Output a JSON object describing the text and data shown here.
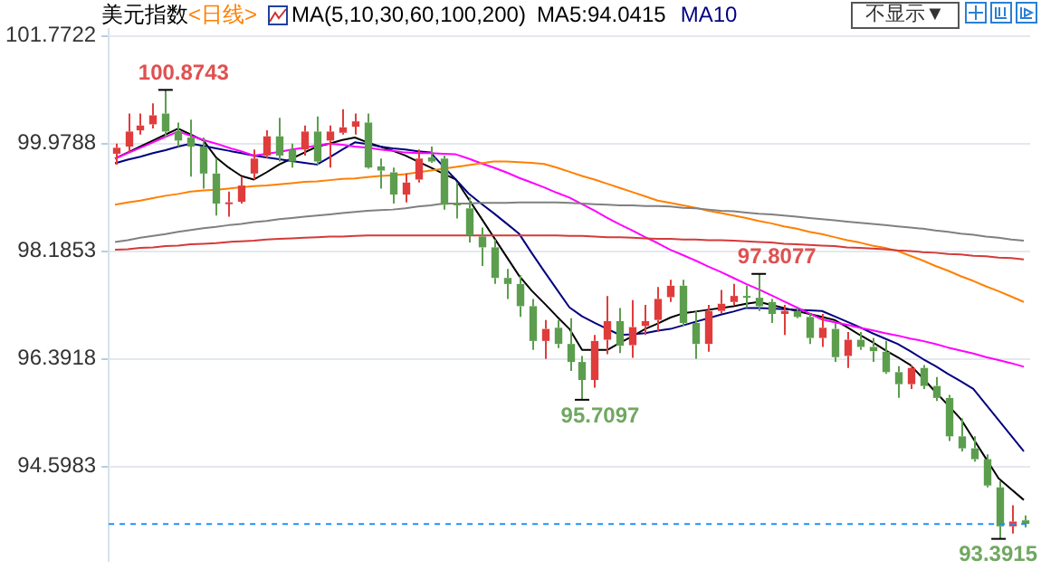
{
  "chart_data": {
    "type": "candlestick",
    "title": "美元指数",
    "subtitle": "<日线>",
    "annotations": [
      "MA(5,10,30,60,100,200)",
      "不显示▼",
      "100.8743",
      "97.8077",
      "95.7097",
      "93.3915"
    ],
    "categories": [
      null,
      null,
      null,
      null,
      null,
      null,
      null,
      null,
      null,
      null,
      null,
      null,
      null,
      null,
      null,
      null,
      null,
      null,
      null,
      null,
      null,
      null,
      null,
      null,
      null,
      null,
      null,
      null,
      null,
      null,
      null,
      null,
      null,
      null,
      null,
      null,
      null,
      null,
      null,
      null,
      null,
      null,
      null,
      null,
      null,
      null,
      null,
      null,
      null,
      null,
      null,
      null,
      null,
      null,
      null,
      null,
      null,
      null,
      null,
      null,
      null,
      null,
      null,
      null,
      null,
      null,
      null,
      null,
      null,
      null,
      null,
      null,
      null
    ],
    "ohlc": [
      [
        99.81,
        99.98,
        99.63,
        99.91
      ],
      [
        99.93,
        100.48,
        99.83,
        100.18
      ],
      [
        100.2,
        100.48,
        100.13,
        100.28
      ],
      [
        100.3,
        100.65,
        100.23,
        100.45
      ],
      [
        100.48,
        100.8743,
        100.08,
        100.18
      ],
      [
        100.18,
        100.33,
        99.93,
        100.03
      ],
      [
        100.08,
        100.38,
        99.43,
        99.93
      ],
      [
        99.93,
        100.08,
        99.23,
        99.48
      ],
      [
        99.48,
        99.73,
        98.78,
        98.98
      ],
      [
        98.99,
        99.18,
        98.76,
        99.0
      ],
      [
        99.01,
        99.43,
        98.98,
        99.28
      ],
      [
        99.48,
        99.88,
        99.38,
        99.73
      ],
      [
        99.78,
        100.2,
        99.73,
        100.1
      ],
      [
        100.1,
        100.41,
        99.68,
        99.78
      ],
      [
        99.88,
        99.98,
        99.58,
        99.68
      ],
      [
        99.88,
        100.28,
        99.78,
        100.18
      ],
      [
        100.18,
        100.43,
        99.63,
        99.68
      ],
      [
        100.03,
        100.28,
        99.58,
        100.18
      ],
      [
        100.16,
        100.55,
        100.13,
        100.25
      ],
      [
        100.26,
        100.48,
        100.13,
        100.35
      ],
      [
        100.33,
        100.48,
        99.56,
        99.58
      ],
      [
        99.6,
        99.73,
        99.23,
        99.53
      ],
      [
        99.5,
        99.58,
        98.98,
        99.13
      ],
      [
        99.13,
        99.48,
        99.0,
        99.33
      ],
      [
        99.38,
        99.88,
        99.33,
        99.73
      ],
      [
        99.75,
        99.93,
        99.66,
        99.68
      ],
      [
        99.73,
        99.78,
        98.88,
        98.96
      ],
      [
        98.98,
        99.33,
        98.73,
        98.95
      ],
      [
        98.9,
        99.08,
        98.33,
        98.45
      ],
      [
        98.43,
        98.58,
        97.94,
        98.25
      ],
      [
        98.25,
        98.38,
        97.64,
        97.74
      ],
      [
        97.74,
        97.89,
        97.39,
        97.64
      ],
      [
        97.64,
        97.79,
        97.09,
        97.27
      ],
      [
        97.27,
        97.39,
        96.54,
        96.69
      ],
      [
        96.69,
        97.04,
        96.39,
        96.89
      ],
      [
        96.91,
        97.04,
        96.57,
        96.64
      ],
      [
        96.64,
        97.07,
        96.19,
        96.34
      ],
      [
        96.34,
        96.44,
        95.7097,
        96.04
      ],
      [
        96.04,
        96.79,
        95.91,
        96.69
      ],
      [
        96.71,
        97.44,
        96.47,
        97.02
      ],
      [
        97.02,
        97.24,
        96.49,
        96.61
      ],
      [
        96.62,
        97.37,
        96.41,
        96.92
      ],
      [
        96.94,
        97.29,
        96.79,
        97.02
      ],
      [
        97.04,
        97.59,
        96.84,
        97.39
      ],
      [
        97.42,
        97.71,
        97.34,
        97.61
      ],
      [
        97.61,
        97.71,
        96.94,
        96.99
      ],
      [
        96.99,
        97.19,
        96.39,
        96.64
      ],
      [
        96.64,
        97.29,
        96.51,
        97.19
      ],
      [
        97.19,
        97.54,
        97.14,
        97.31
      ],
      [
        97.34,
        97.64,
        97.29,
        97.44
      ],
      [
        97.44,
        97.61,
        97.24,
        97.41
      ],
      [
        97.41,
        97.8077,
        97.19,
        97.27
      ],
      [
        97.34,
        97.39,
        96.99,
        97.14
      ],
      [
        97.14,
        97.29,
        96.79,
        97.19
      ],
      [
        97.19,
        97.24,
        97.07,
        97.09
      ],
      [
        97.09,
        97.14,
        96.64,
        96.74
      ],
      [
        96.74,
        97.14,
        96.59,
        96.91
      ],
      [
        96.89,
        96.99,
        96.34,
        96.42
      ],
      [
        96.44,
        96.84,
        96.24,
        96.71
      ],
      [
        96.71,
        96.84,
        96.54,
        96.59
      ],
      [
        96.59,
        96.74,
        96.34,
        96.52
      ],
      [
        96.51,
        96.69,
        96.14,
        96.17
      ],
      [
        96.17,
        96.27,
        95.74,
        95.97
      ],
      [
        95.97,
        96.29,
        95.89,
        96.24
      ],
      [
        96.24,
        96.29,
        95.89,
        95.94
      ],
      [
        95.94,
        96.09,
        95.69,
        95.74
      ],
      [
        95.74,
        95.79,
        95.02,
        95.1
      ],
      [
        95.1,
        95.4,
        94.85,
        94.9
      ],
      [
        94.9,
        95.1,
        94.68,
        94.72
      ],
      [
        94.72,
        94.8,
        94.25,
        94.28
      ],
      [
        94.25,
        94.35,
        93.3915,
        93.6
      ],
      [
        93.6,
        93.95,
        93.48,
        93.68
      ],
      [
        93.7,
        93.78,
        93.58,
        93.64
      ]
    ],
    "colors": [
      "#e03c3c",
      "#e03c3c",
      "#e03c3c",
      "#e03c3c",
      "#5c9e4e",
      "#5c9e4e",
      "#5c9e4e",
      "#5c9e4e",
      "#5c9e4e",
      "#e03c3c",
      "#e03c3c",
      "#e03c3c",
      "#e03c3c",
      "#5c9e4e",
      "#5c9e4e",
      "#e03c3c",
      "#5c9e4e",
      "#e03c3c",
      "#e03c3c",
      "#e03c3c",
      "#5c9e4e",
      "#5c9e4e",
      "#5c9e4e",
      "#e03c3c",
      "#e03c3c",
      "#5c9e4e",
      "#5c9e4e",
      "#5c9e4e",
      "#5c9e4e",
      "#5c9e4e",
      "#5c9e4e",
      "#5c9e4e",
      "#5c9e4e",
      "#5c9e4e",
      "#e03c3c",
      "#5c9e4e",
      "#5c9e4e",
      "#5c9e4e",
      "#e03c3c",
      "#e03c3c",
      "#5c9e4e",
      "#e03c3c",
      "#e03c3c",
      "#e03c3c",
      "#e03c3c",
      "#5c9e4e",
      "#5c9e4e",
      "#e03c3c",
      "#e03c3c",
      "#e03c3c",
      "#5c9e4e",
      "#5c9e4e",
      "#5c9e4e",
      "#e03c3c",
      "#5c9e4e",
      "#5c9e4e",
      "#e03c3c",
      "#5c9e4e",
      "#e03c3c",
      "#5c9e4e",
      "#5c9e4e",
      "#5c9e4e",
      "#5c9e4e",
      "#e03c3c",
      "#5c9e4e",
      "#5c9e4e",
      "#5c9e4e",
      "#5c9e4e",
      "#5c9e4e",
      "#5c9e4e",
      "#5c9e4e",
      "#e03c3c",
      "#5c9e4e"
    ],
    "series": [
      {
        "type": "line",
        "color": "#d43a3a",
        "values": [
          98.21,
          98.22,
          98.24,
          98.25,
          98.27,
          98.28,
          98.3,
          98.31,
          98.32,
          98.34,
          98.35,
          98.36,
          98.38,
          98.39,
          98.4,
          98.41,
          98.42,
          98.43,
          98.43,
          98.44,
          98.45,
          98.45,
          98.45,
          98.45,
          98.45,
          98.45,
          98.45,
          98.45,
          98.45,
          98.45,
          98.45,
          98.45,
          98.45,
          98.45,
          98.45,
          98.45,
          98.44,
          98.44,
          98.43,
          98.42,
          98.42,
          98.41,
          98.4,
          98.39,
          98.39,
          98.38,
          98.38,
          98.37,
          98.37,
          98.36,
          98.35,
          98.34,
          98.33,
          98.31,
          98.3,
          98.29,
          98.28,
          98.27,
          98.25,
          98.24,
          98.23,
          98.22,
          98.2,
          98.19,
          98.17,
          98.16,
          98.14,
          98.13,
          98.11,
          98.1,
          98.08,
          98.07,
          98.05
        ]
      },
      {
        "type": "line",
        "color": "#808080",
        "values": [
          98.34,
          98.37,
          98.41,
          98.44,
          98.47,
          98.51,
          98.54,
          98.57,
          98.59,
          98.62,
          98.64,
          98.67,
          98.69,
          98.72,
          98.74,
          98.76,
          98.78,
          98.8,
          98.82,
          98.84,
          98.86,
          98.87,
          98.88,
          98.9,
          98.93,
          98.95,
          98.98,
          98.98,
          98.98,
          98.99,
          98.99,
          98.99,
          99.0,
          99.0,
          99.0,
          99.0,
          98.99,
          98.98,
          98.97,
          98.96,
          98.95,
          98.95,
          98.94,
          98.94,
          98.93,
          98.91,
          98.9,
          98.88,
          98.86,
          98.85,
          98.83,
          98.81,
          98.8,
          98.78,
          98.76,
          98.74,
          98.72,
          98.7,
          98.68,
          98.66,
          98.64,
          98.62,
          98.6,
          98.58,
          98.56,
          98.53,
          98.51,
          98.48,
          98.46,
          98.43,
          98.41,
          98.38,
          98.36
        ]
      },
      {
        "type": "line",
        "color": "#ff8000",
        "values": [
          98.96,
          99.0,
          99.03,
          99.07,
          99.11,
          99.14,
          99.18,
          99.2,
          99.21,
          99.23,
          99.25,
          99.27,
          99.28,
          99.3,
          99.32,
          99.34,
          99.35,
          99.37,
          99.39,
          99.4,
          99.42,
          99.44,
          99.45,
          99.47,
          99.5,
          99.53,
          99.56,
          99.59,
          99.62,
          99.65,
          99.68,
          99.68,
          99.67,
          99.66,
          99.64,
          99.58,
          99.51,
          99.44,
          99.38,
          99.31,
          99.24,
          99.17,
          99.1,
          99.03,
          98.99,
          98.95,
          98.91,
          98.86,
          98.82,
          98.78,
          98.74,
          98.69,
          98.65,
          98.6,
          98.56,
          98.51,
          98.47,
          98.42,
          98.37,
          98.33,
          98.28,
          98.24,
          98.19,
          98.11,
          98.03,
          97.94,
          97.86,
          97.77,
          97.69,
          97.6,
          97.52,
          97.43,
          97.34
        ]
      },
      {
        "type": "line",
        "color": "#ff00ff",
        "values": [
          99.73,
          99.82,
          99.91,
          100.0,
          100.09,
          100.18,
          100.11,
          100.04,
          99.98,
          99.91,
          99.85,
          99.78,
          99.81,
          99.84,
          99.88,
          99.91,
          99.95,
          99.98,
          99.96,
          99.93,
          99.91,
          99.88,
          99.86,
          99.83,
          99.82,
          99.82,
          99.81,
          99.8,
          99.73,
          99.65,
          99.58,
          99.5,
          99.41,
          99.33,
          99.25,
          99.16,
          99.08,
          98.97,
          98.86,
          98.74,
          98.63,
          98.53,
          98.42,
          98.32,
          98.21,
          98.12,
          98.03,
          97.93,
          97.84,
          97.74,
          97.64,
          97.55,
          97.45,
          97.35,
          97.25,
          97.15,
          97.05,
          97.0,
          96.96,
          96.91,
          96.87,
          96.82,
          96.78,
          96.73,
          96.69,
          96.64,
          96.58,
          96.53,
          96.48,
          96.42,
          96.37,
          96.32,
          96.26
        ]
      },
      {
        "type": "line",
        "name": "MA10",
        "color": "#000080",
        "values": [
          99.65,
          99.71,
          99.76,
          99.82,
          99.87,
          99.93,
          99.98,
          99.94,
          99.9,
          99.86,
          99.82,
          99.78,
          99.75,
          99.72,
          99.69,
          99.66,
          99.63,
          99.75,
          99.88,
          100.0,
          99.97,
          99.93,
          99.9,
          99.88,
          99.85,
          99.83,
          99.6,
          99.38,
          99.15,
          98.98,
          98.82,
          98.65,
          98.48,
          98.16,
          97.85,
          97.55,
          97.25,
          97.1,
          96.99,
          96.89,
          96.79,
          96.8,
          96.82,
          96.86,
          96.89,
          96.95,
          97.01,
          97.07,
          97.13,
          97.18,
          97.24,
          97.24,
          97.23,
          97.22,
          97.21,
          97.2,
          97.19,
          97.1,
          97.01,
          96.92,
          96.82,
          96.73,
          96.64,
          96.52,
          96.39,
          96.27,
          96.14,
          96.02,
          95.89,
          95.63,
          95.37,
          95.11,
          94.85
        ]
      },
      {
        "type": "line",
        "name": "MA5:94.0415",
        "color": "#000000",
        "values": [
          99.73,
          99.83,
          99.93,
          100.03,
          100.13,
          100.23,
          100.13,
          100.03,
          99.75,
          99.58,
          99.44,
          99.38,
          99.5,
          99.63,
          99.73,
          99.83,
          99.93,
          99.98,
          100.04,
          100.08,
          100.0,
          99.93,
          99.86,
          99.78,
          99.68,
          99.58,
          99.48,
          99.38,
          99.06,
          98.74,
          98.42,
          98.1,
          97.78,
          97.53,
          97.32,
          97.1,
          96.89,
          96.54,
          96.54,
          96.54,
          96.66,
          96.77,
          96.89,
          96.98,
          97.08,
          97.15,
          97.18,
          97.21,
          97.24,
          97.27,
          97.31,
          97.34,
          97.29,
          97.24,
          97.19,
          97.14,
          97.09,
          97.04,
          96.92,
          96.79,
          96.67,
          96.54,
          96.42,
          96.29,
          96.07,
          95.84,
          95.62,
          95.39,
          95.06,
          94.73,
          94.4,
          94.22,
          94.04
        ]
      }
    ],
    "ref_lines": [
      {
        "axis": "y",
        "value": 93.64,
        "color": "#1e90ff",
        "line_style": "dashed"
      }
    ],
    "ylim": [
      93.03,
      101.89
    ],
    "yticks": [
      94.5983,
      96.3918,
      98.1853,
      99.9788,
      101.7722
    ],
    "grid": "y",
    "legend": "top",
    "tick_labels": "y"
  }
}
